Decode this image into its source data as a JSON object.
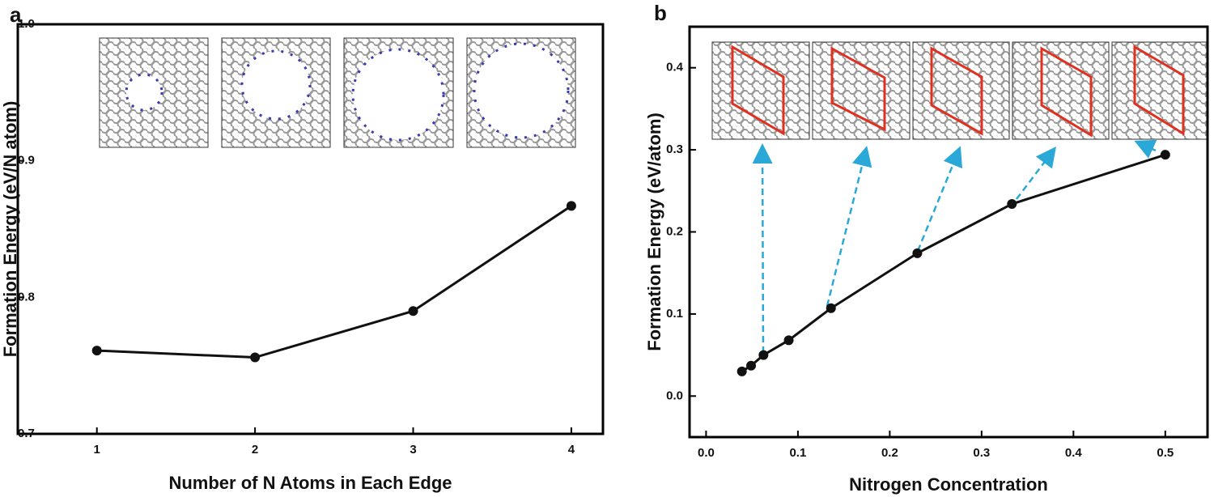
{
  "chart_data": [
    {
      "type": "line",
      "panel_label": "a",
      "x_label": "Number of N Atoms in Each Edge",
      "y_label": "Formation Energy (eV/N atom)",
      "x": [
        1,
        2,
        3,
        4
      ],
      "series": [
        {
          "color": "#111111",
          "values": [
            0.761,
            0.756,
            0.79,
            0.867
          ]
        }
      ],
      "xlim": [
        0.5,
        4.2
      ],
      "xticks": [
        1,
        2,
        3,
        4
      ],
      "ylim": [
        0.7,
        1.0
      ],
      "yticks": [
        0.7,
        0.8,
        0.9,
        {
          "value": 1.0,
          "label": "1.0"
        }
      ]
    },
    {
      "type": "line",
      "panel_label": "b",
      "x_label": "Nitrogen Concentration",
      "y_label": "Formation Energy (eV/atom)",
      "x": [
        0.039,
        0.049,
        0.0625,
        0.09,
        0.136,
        0.23,
        0.333,
        0.5
      ],
      "series": [
        {
          "color": "#111111",
          "values": [
            0.03,
            0.037,
            0.05,
            0.068,
            0.107,
            0.174,
            0.234,
            0.294
          ]
        }
      ],
      "xlim": [
        -0.018,
        0.546
      ],
      "xticks": [
        {
          "value": 0,
          "label": "0.0"
        },
        0.1,
        0.2,
        0.3,
        0.4,
        0.5
      ],
      "ylim": [
        -0.05,
        0.45
      ],
      "yticks": [
        {
          "value": 0,
          "label": "0.0"
        },
        0.1,
        0.2,
        0.3,
        0.4
      ]
    }
  ]
}
